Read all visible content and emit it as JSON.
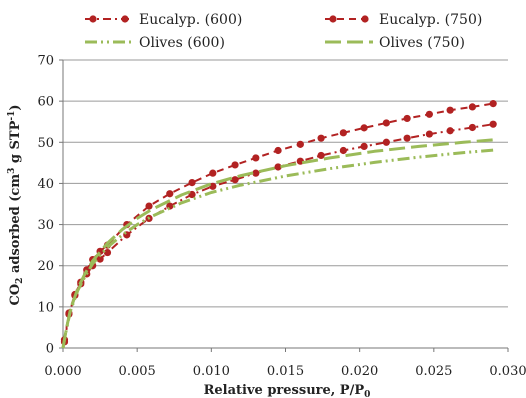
{
  "chart_data": {
    "type": "line",
    "xlabel": "Relative pressure, P/P",
    "xlabel_sub": "0",
    "ylabel_parts": [
      "CO",
      "2",
      " adsorbed (cm",
      "3",
      " g STP",
      "-1",
      ")"
    ],
    "xlim": [
      0,
      0.03
    ],
    "ylim": [
      0,
      70
    ],
    "x_ticks": [
      0,
      0.005,
      0.01,
      0.015,
      0.02,
      0.025,
      0.03
    ],
    "x_tick_labels": [
      "0.000",
      "0.005",
      "0.010",
      "0.015",
      "0.020",
      "0.025",
      "0.030"
    ],
    "y_ticks": [
      0,
      10,
      20,
      30,
      40,
      50,
      60,
      70
    ],
    "y_tick_labels": [
      "0",
      "10",
      "20",
      "30",
      "40",
      "50",
      "60",
      "70"
    ],
    "grid": "horizontal",
    "legend_position": "top",
    "series": [
      {
        "name": "Eucalyp. (600)",
        "color": "#b22222",
        "style": "dash-dot-markers",
        "x": [
          0.0001,
          0.0004,
          0.0008,
          0.0012,
          0.0016,
          0.002,
          0.0025,
          0.003,
          0.0043,
          0.0058,
          0.0072,
          0.0087,
          0.0101,
          0.0116,
          0.013,
          0.0145,
          0.016,
          0.0174,
          0.0189,
          0.0203,
          0.0218,
          0.0232,
          0.0247,
          0.0261,
          0.0276,
          0.029
        ],
        "y": [
          1.5,
          8.2,
          12.8,
          15.6,
          18,
          20,
          21.6,
          23.2,
          27.5,
          31.5,
          34.5,
          37.3,
          39.3,
          40.9,
          42.5,
          44,
          45.4,
          46.8,
          48,
          49,
          50,
          51,
          52,
          52.8,
          53.6,
          54.4
        ]
      },
      {
        "name": "Eucalyp. (750)",
        "color": "#b22222",
        "style": "dashed-markers",
        "x": [
          0.0001,
          0.0004,
          0.0008,
          0.0012,
          0.0016,
          0.002,
          0.0025,
          0.003,
          0.0043,
          0.0058,
          0.0072,
          0.0087,
          0.0101,
          0.0116,
          0.013,
          0.0145,
          0.016,
          0.0174,
          0.0189,
          0.0203,
          0.0218,
          0.0232,
          0.0247,
          0.0261,
          0.0276,
          0.029
        ],
        "y": [
          2,
          8.5,
          13,
          16,
          19,
          21.5,
          23.5,
          25,
          30,
          34.5,
          37.5,
          40.2,
          42.5,
          44.5,
          46.2,
          48,
          49.5,
          51,
          52.3,
          53.5,
          54.7,
          55.8,
          56.8,
          57.8,
          58.6,
          59.4
        ]
      },
      {
        "name": "Olives (600)",
        "color": "#9bbb59",
        "style": "dash-dot-dot",
        "x": [
          0,
          0.0002,
          0.0005,
          0.001,
          0.0015,
          0.002,
          0.003,
          0.004,
          0.005,
          0.006,
          0.008,
          0.01,
          0.012,
          0.015,
          0.018,
          0.021,
          0.024,
          0.027,
          0.029
        ],
        "y": [
          0,
          4,
          9,
          14,
          17.5,
          20.5,
          24.5,
          27.5,
          30,
          32,
          35.3,
          37.8,
          39.6,
          41.8,
          43.6,
          45.1,
          46.4,
          47.5,
          48.1
        ]
      },
      {
        "name": "Olives (750)",
        "color": "#9bbb59",
        "style": "long-dash",
        "x": [
          0,
          0.0002,
          0.0005,
          0.001,
          0.0015,
          0.002,
          0.003,
          0.004,
          0.005,
          0.006,
          0.008,
          0.01,
          0.012,
          0.015,
          0.018,
          0.021,
          0.024,
          0.027,
          0.029
        ],
        "y": [
          0,
          4.2,
          9.3,
          14.5,
          18.2,
          21.2,
          25.5,
          28.8,
          31.5,
          33.7,
          37.2,
          39.9,
          41.9,
          44.3,
          46.2,
          47.8,
          49,
          50,
          50.6
        ]
      }
    ]
  }
}
